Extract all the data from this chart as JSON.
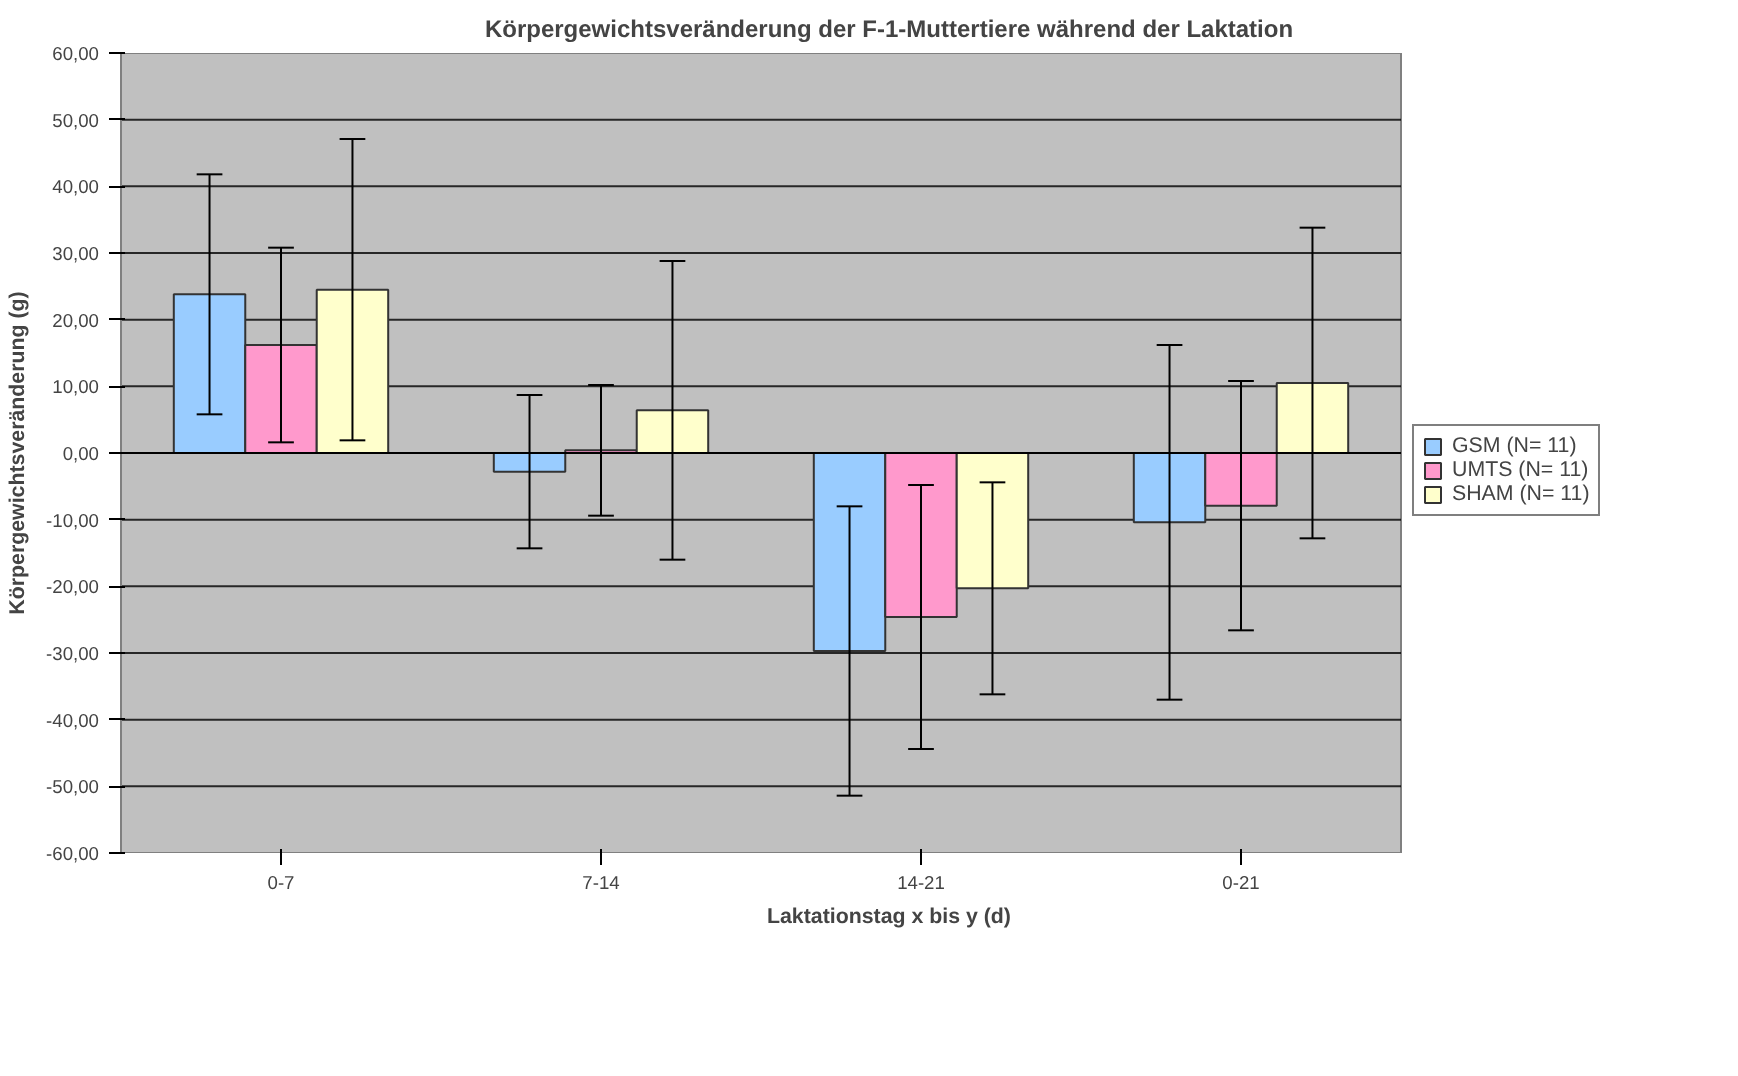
{
  "chart_data": {
    "type": "bar",
    "title": "Körpergewichtsveränderung der F-1-Muttertiere während der Laktation",
    "xlabel": "Laktationstag x bis y (d)",
    "ylabel": "Körpergewichtsveränderung (g)",
    "categories": [
      "0-7",
      "7-14",
      "14-21",
      "0-21"
    ],
    "series": [
      {
        "name": "GSM (N= 11)",
        "color": "#99ccff",
        "values": [
          23.8,
          -2.8,
          -29.7,
          -10.4
        ],
        "errors": [
          18,
          11.5,
          21.7,
          26.6
        ]
      },
      {
        "name": "UMTS (N= 11)",
        "color": "#ff99cc",
        "values": [
          16.2,
          0.4,
          -24.6,
          -7.9
        ],
        "errors": [
          14.6,
          9.8,
          19.8,
          18.7
        ]
      },
      {
        "name": "SHAM (N= 11)",
        "color": "#ffffcc",
        "values": [
          24.5,
          6.4,
          -20.3,
          10.5
        ],
        "errors": [
          22.6,
          22.4,
          15.9,
          23.3
        ]
      }
    ],
    "ylim": [
      -60,
      60
    ],
    "yticks": [
      {
        "value": -60,
        "label": "-60,00"
      },
      {
        "value": -50,
        "label": "-50,00"
      },
      {
        "value": -40,
        "label": "-40,00"
      },
      {
        "value": -30,
        "label": "-30,00"
      },
      {
        "value": -20,
        "label": "-20,00"
      },
      {
        "value": -10,
        "label": "-10,00"
      },
      {
        "value": 0,
        "label": "0,00"
      },
      {
        "value": 10,
        "label": "10,00"
      },
      {
        "value": 20,
        "label": "20,00"
      },
      {
        "value": 30,
        "label": "30,00"
      },
      {
        "value": 40,
        "label": "40,00"
      },
      {
        "value": 50,
        "label": "50,00"
      },
      {
        "value": 60,
        "label": "60,00"
      }
    ],
    "grid": "y",
    "legend": "right"
  }
}
